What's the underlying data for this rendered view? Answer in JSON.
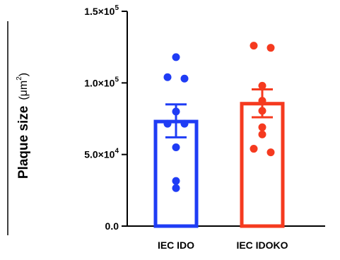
{
  "chart_data": {
    "type": "bar",
    "ylabel": "Plaque size",
    "yunit_prefix": "(μm",
    "yunit_exp": "2",
    "yunit_suffix": ")",
    "ylim": [
      0,
      150000
    ],
    "y_ticks": [
      {
        "value": 0,
        "mantissa": "0.0",
        "exponent": ""
      },
      {
        "value": 50000,
        "mantissa": "5.0×10",
        "exponent": "4"
      },
      {
        "value": 100000,
        "mantissa": "1.0×10",
        "exponent": "5"
      },
      {
        "value": 150000,
        "mantissa": "1.5×10",
        "exponent": "5"
      }
    ],
    "categories": [
      "IEC IDO",
      "IEC IDOKO"
    ],
    "bars": [
      {
        "label": "IEC IDO",
        "mean": 73000,
        "sem_low": 62000,
        "sem_high": 85000,
        "color": "#1f3cf5",
        "points": [
          118000,
          104000,
          103000,
          80000,
          71500,
          71500,
          55000,
          31500,
          26500
        ]
      },
      {
        "label": "IEC IDOKO",
        "mean": 85500,
        "sem_low": 76000,
        "sem_high": 95500,
        "color": "#f53a1f",
        "points": [
          126000,
          124500,
          98000,
          87500,
          80500,
          69000,
          64000,
          54000,
          51500
        ]
      }
    ],
    "grid": false,
    "legend": "none"
  }
}
